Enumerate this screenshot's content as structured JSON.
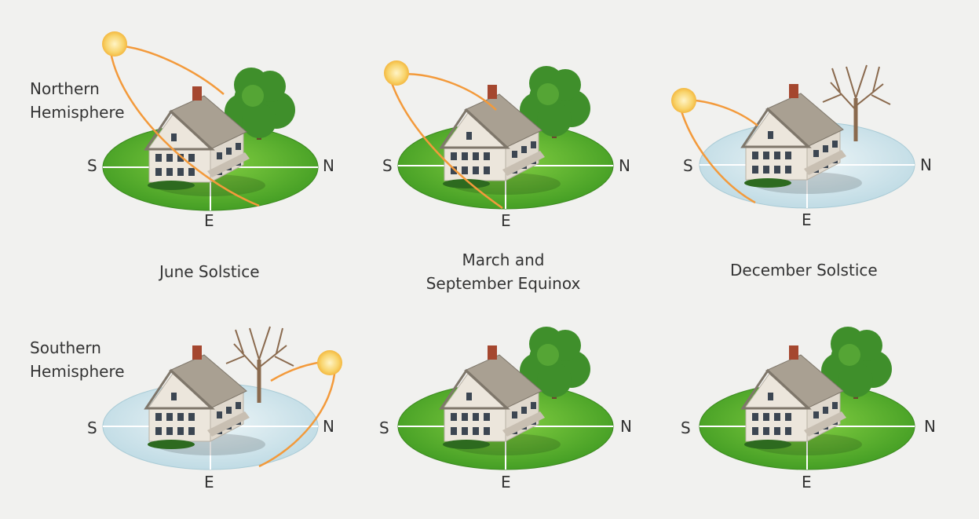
{
  "hemispheres": {
    "northern": [
      "Northern",
      "Hemisphere"
    ],
    "southern": [
      "Southern",
      "Hemisphere"
    ]
  },
  "seasons": {
    "june": "June Solstice",
    "equinox": [
      "March and",
      "September Equinox"
    ],
    "december": "December Solstice"
  },
  "directions": {
    "south": "S",
    "north": "N",
    "east": "E"
  },
  "colors": {
    "grass": "#5fae2e",
    "snow": "#d3e7ee",
    "sun": "#f6c94b",
    "sun_path": "#f39a3b",
    "tree_green": "#3f8f2b",
    "tree_bare": "#8a6a4e",
    "house_siding": "#ece6dc",
    "roof": "#a9a092"
  },
  "panels": [
    {
      "row": "northern",
      "season": "june",
      "ground": "grass",
      "tree": "green",
      "sun": true
    },
    {
      "row": "northern",
      "season": "equinox",
      "ground": "grass",
      "tree": "green",
      "sun": true
    },
    {
      "row": "northern",
      "season": "december",
      "ground": "snow",
      "tree": "bare",
      "sun": true
    },
    {
      "row": "southern",
      "season": "june",
      "ground": "snow",
      "tree": "bare",
      "sun": true
    },
    {
      "row": "southern",
      "season": "equinox",
      "ground": "grass",
      "tree": "green",
      "sun": false
    },
    {
      "row": "southern",
      "season": "december",
      "ground": "grass",
      "tree": "green",
      "sun": false
    }
  ]
}
